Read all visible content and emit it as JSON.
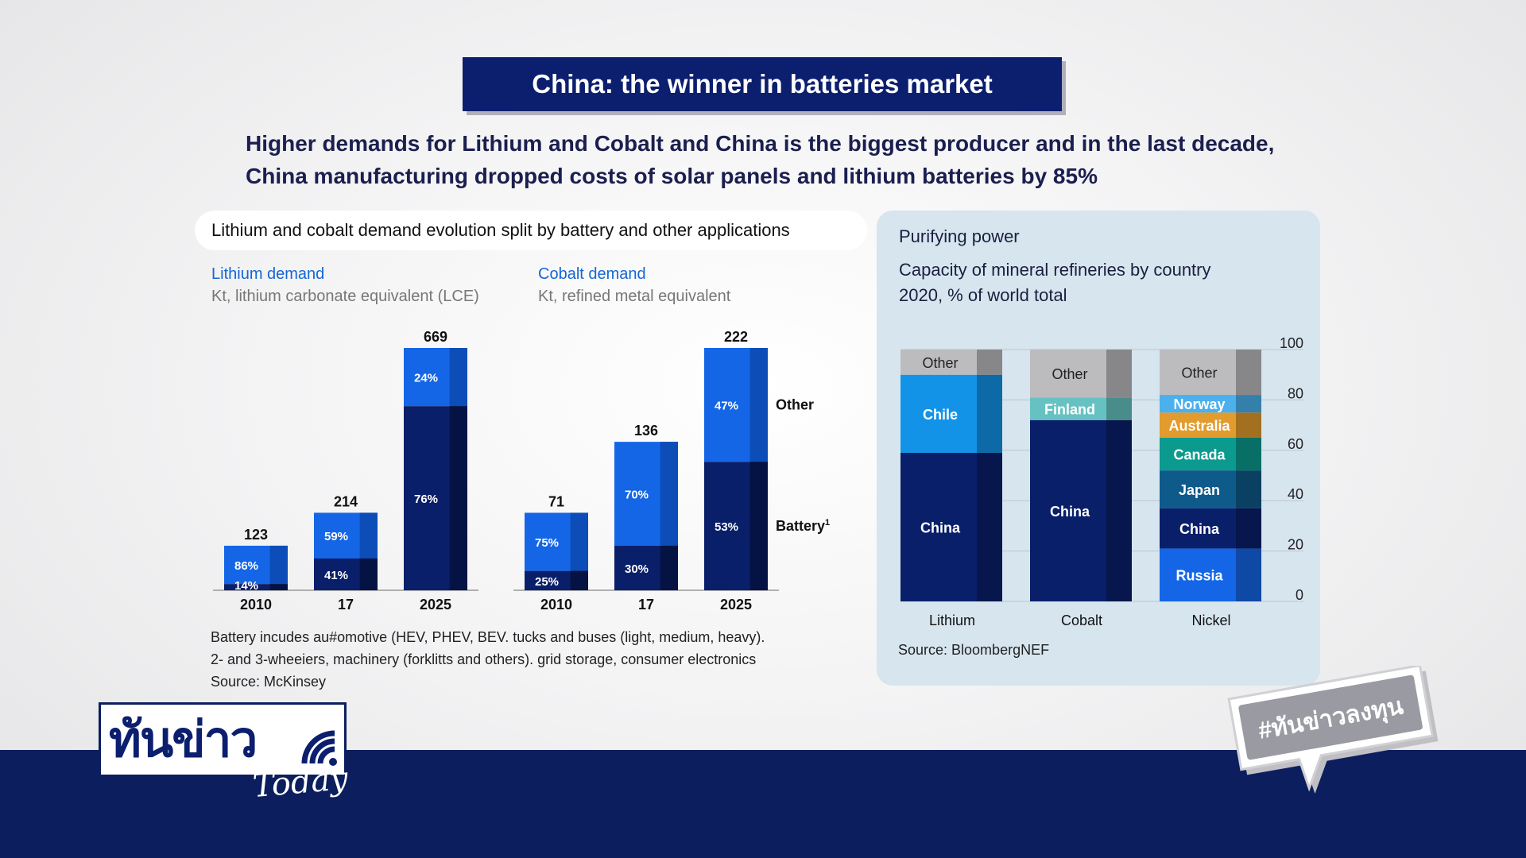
{
  "banner": {
    "title": "China: the winner in batteries market"
  },
  "subtitle": {
    "line1": "Higher demands for Lithium and Cobalt and China is the biggest producer and in the last decade,",
    "line2": "China manufacturing dropped costs of solar panels and lithium batteries by 85%"
  },
  "left_section": {
    "header": "Lithium and cobalt demand evolution split by battery and other applications",
    "lithium": {
      "title": "Lithium demand",
      "unit": "Kt, lithium carbonate equivalent (LCE)"
    },
    "cobalt": {
      "title": "Cobalt demand",
      "unit": "Kt, refined metal equivalent"
    },
    "footnote": {
      "line1": "Battery incudes au#omotive (HEV, PHEV, BEV. tucks and buses (light, medium, heavy).",
      "line2": "2- and 3-wheeiers, machinery (forklitts and others). grid storage, consumer electronics",
      "line3": "Source: McKinsey"
    }
  },
  "right_section": {
    "kicker": "Purifying power",
    "title_line1": "Capacity of mineral refineries by country",
    "title_line2": "2020, % of world total",
    "source": "Source: BloombergNEF"
  },
  "colors": {
    "navy": "#0c1e6e",
    "dark_segment": "#0a1f6a",
    "bright_segment": "#1466e6",
    "panel_bg": "#d7e5ef",
    "bar_bottom": "#0c1e5e"
  },
  "chart_data": [
    {
      "type": "bar",
      "stacked": true,
      "title": "Lithium demand",
      "subtitle": "Kt, lithium carbonate equivalent (LCE)",
      "categories": [
        "2010",
        "17",
        "2025"
      ],
      "totals": [
        123,
        214,
        669
      ],
      "series": [
        {
          "name": "Battery",
          "percent": [
            14,
            41,
            76
          ]
        },
        {
          "name": "Other",
          "percent": [
            86,
            59,
            24
          ]
        }
      ]
    },
    {
      "type": "bar",
      "stacked": true,
      "title": "Cobalt demand",
      "subtitle": "Kt, refined metal equivalent",
      "categories": [
        "2010",
        "17",
        "2025"
      ],
      "totals": [
        71,
        136,
        222
      ],
      "series": [
        {
          "name": "Battery",
          "percent": [
            25,
            30,
            53
          ]
        },
        {
          "name": "Other",
          "percent": [
            75,
            70,
            47
          ]
        }
      ],
      "legend_labels": {
        "other": "Other",
        "battery": "Battery",
        "battery_sup": "1"
      }
    },
    {
      "type": "bar",
      "stacked": true,
      "percent_stacked": true,
      "title": "Capacity of mineral refineries by country",
      "subtitle": "2020, % of world total",
      "categories": [
        "Lithium",
        "Cobalt",
        "Nickel"
      ],
      "ylim": [
        0,
        100
      ],
      "yticks": [
        "0",
        "20",
        "40",
        "60",
        "80",
        "100"
      ],
      "columns": [
        {
          "name": "Lithium",
          "segments": [
            {
              "label": "China",
              "value": 59,
              "color": "#0a1f6a"
            },
            {
              "label": "Chile",
              "value": 31,
              "color": "#1393e8"
            },
            {
              "label": "Other",
              "value": 10,
              "color": "#bcbcbf"
            }
          ]
        },
        {
          "name": "Cobalt",
          "segments": [
            {
              "label": "China",
              "value": 72,
              "color": "#0a1f6a"
            },
            {
              "label": "Finland",
              "value": 9,
              "color": "#66c2c2"
            },
            {
              "label": "Other",
              "value": 19,
              "color": "#bcbcbf"
            }
          ]
        },
        {
          "name": "Nickel",
          "segments": [
            {
              "label": "Russia",
              "value": 21,
              "color": "#1466e6"
            },
            {
              "label": "China",
              "value": 16,
              "color": "#0a1f6a"
            },
            {
              "label": "Japan",
              "value": 15,
              "color": "#0e5a8a"
            },
            {
              "label": "Canada",
              "value": 13,
              "color": "#0b9a8e"
            },
            {
              "label": "Australia",
              "value": 10,
              "color": "#e29b2d"
            },
            {
              "label": "Norway",
              "value": 7,
              "color": "#4ab0ee"
            },
            {
              "label": "Other",
              "value": 18,
              "color": "#bcbcbf"
            }
          ]
        }
      ]
    }
  ],
  "logo": {
    "text": "ทันข่าว",
    "subtext": "Today"
  },
  "hashtag": "#ทันข่าวลงทุน"
}
